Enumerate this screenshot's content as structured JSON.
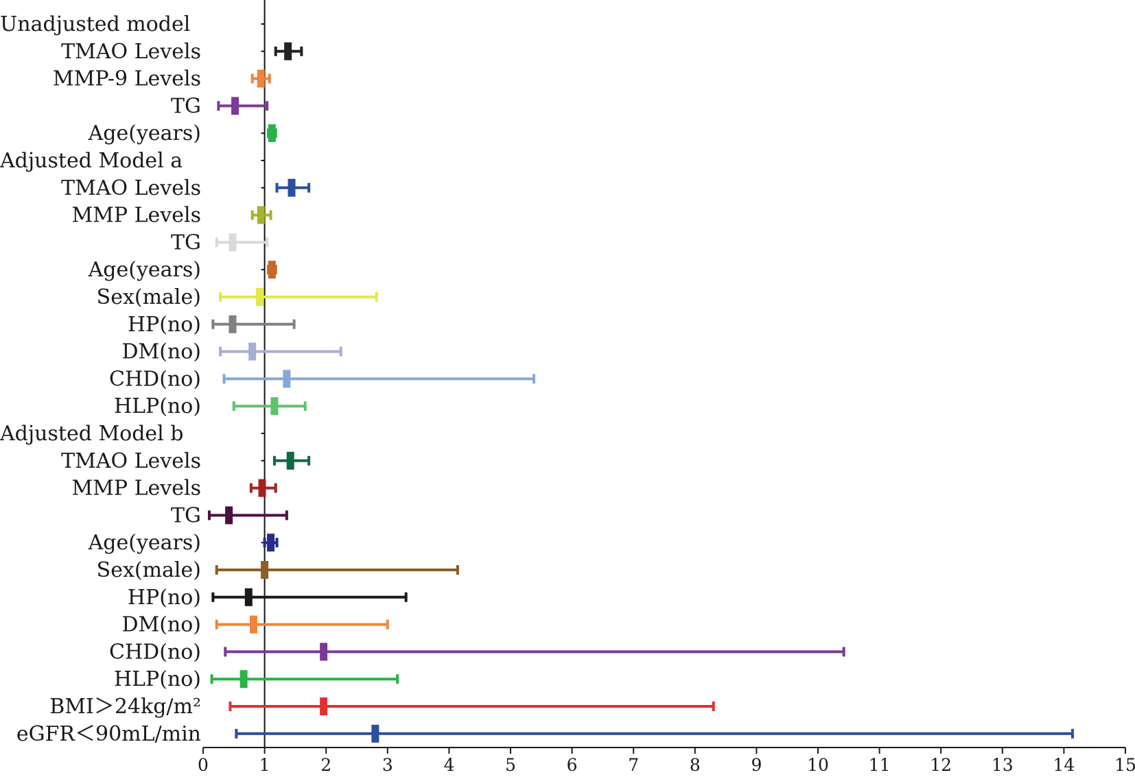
{
  "chart_data": {
    "type": "forest",
    "title": "",
    "xlabel": "",
    "ylabel": "",
    "xlim": [
      0,
      15
    ],
    "reference_line": 1,
    "x_ticks": [
      0,
      1,
      2,
      3,
      4,
      5,
      6,
      7,
      8,
      9,
      10,
      11,
      12,
      13,
      14,
      15
    ],
    "rows": [
      {
        "label": "Unadjusted model",
        "header": true
      },
      {
        "label": "TMAO Levels",
        "or": 1.38,
        "lo": 1.18,
        "hi": 1.6,
        "color": "#222222"
      },
      {
        "label": "MMP-9 Levels",
        "or": 0.94,
        "lo": 0.8,
        "hi": 1.08,
        "color": "#f0843a"
      },
      {
        "label": "TG",
        "or": 0.52,
        "lo": 0.25,
        "hi": 1.04,
        "color": "#7b3a96"
      },
      {
        "label": "Age(years)",
        "or": 1.12,
        "lo": 1.06,
        "hi": 1.18,
        "color": "#2bb34a"
      },
      {
        "label": "Adjusted Model a",
        "header": true
      },
      {
        "label": "TMAO Levels",
        "or": 1.44,
        "lo": 1.2,
        "hi": 1.72,
        "color": "#2a4f9e"
      },
      {
        "label": "MMP Levels",
        "or": 0.94,
        "lo": 0.8,
        "hi": 1.1,
        "color": "#a7b22e"
      },
      {
        "label": "TG",
        "or": 0.48,
        "lo": 0.22,
        "hi": 1.04,
        "color": "#d9d9d9"
      },
      {
        "label": "Age(years)",
        "or": 1.12,
        "lo": 1.06,
        "hi": 1.18,
        "color": "#c46a2a"
      },
      {
        "label": "Sex(male)",
        "or": 0.92,
        "lo": 0.28,
        "hi": 2.82,
        "color": "#e3e84a"
      },
      {
        "label": "HP(no)",
        "or": 0.48,
        "lo": 0.16,
        "hi": 1.48,
        "color": "#808080"
      },
      {
        "label": "DM(no)",
        "or": 0.8,
        "lo": 0.28,
        "hi": 2.24,
        "color": "#a9acd6"
      },
      {
        "label": "CHD(no)",
        "or": 1.36,
        "lo": 0.34,
        "hi": 5.38,
        "color": "#86a8d8"
      },
      {
        "label": "HLP(no)",
        "or": 1.16,
        "lo": 0.5,
        "hi": 1.66,
        "color": "#5cc46a"
      },
      {
        "label": "Adjusted Model b",
        "header": true
      },
      {
        "label": "TMAO Levels",
        "or": 1.42,
        "lo": 1.16,
        "hi": 1.72,
        "color": "#0d6b44"
      },
      {
        "label": "MMP Levels",
        "or": 0.96,
        "lo": 0.78,
        "hi": 1.18,
        "color": "#a52222"
      },
      {
        "label": "TG",
        "or": 0.42,
        "lo": 0.1,
        "hi": 1.36,
        "color": "#4e0f44"
      },
      {
        "label": "Age(years)",
        "or": 1.1,
        "lo": 1.0,
        "hi": 1.2,
        "color": "#2a2a8a"
      },
      {
        "label": "Sex(male)",
        "or": 1.0,
        "lo": 0.22,
        "hi": 4.14,
        "color": "#8c5e28"
      },
      {
        "label": "HP(no)",
        "or": 0.74,
        "lo": 0.16,
        "hi": 3.3,
        "color": "#1a1a1a"
      },
      {
        "label": "DM(no)",
        "or": 0.82,
        "lo": 0.22,
        "hi": 3.0,
        "color": "#f0843a"
      },
      {
        "label": "CHD(no)",
        "or": 1.96,
        "lo": 0.36,
        "hi": 10.42,
        "color": "#7b3a96"
      },
      {
        "label": "HLP(no)",
        "or": 0.66,
        "lo": 0.14,
        "hi": 3.16,
        "color": "#2bb34a"
      },
      {
        "label": "BMI＞24kg/m²",
        "or": 1.96,
        "lo": 0.44,
        "hi": 8.3,
        "color": "#e03030"
      },
      {
        "label": "eGFR＜90mL/min",
        "or": 2.8,
        "lo": 0.54,
        "hi": 14.14,
        "color": "#2a4f9e"
      }
    ]
  }
}
